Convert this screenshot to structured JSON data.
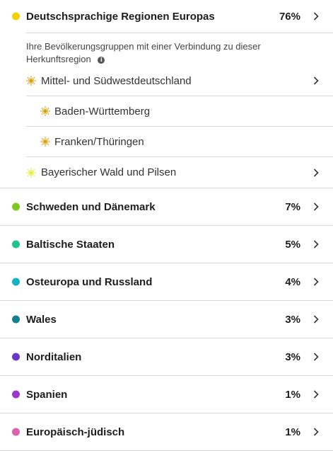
{
  "top_region": {
    "name": "Deutschsprachige Regionen Europas",
    "percent": "76%",
    "color": "#f2d200",
    "description": "Ihre Bevölkerungsgruppen mit einer Verbindung zu dieser Herkunftsregion",
    "sub_regions": [
      {
        "name": "Mittel- und Südwestdeutschland",
        "level": 1,
        "color": "#d6a312",
        "chevron": true
      },
      {
        "name": "Baden-Württemberg",
        "level": 2,
        "color": "#d6a312",
        "chevron": false
      },
      {
        "name": "Franken/Thüringen",
        "level": 2,
        "color": "#d6a312",
        "chevron": false
      },
      {
        "name": "Bayerischer Wald und Pilsen",
        "level": 1,
        "color": "#e2ef3a",
        "chevron": true
      }
    ]
  },
  "regions": [
    {
      "name": "Schweden und Dänemark",
      "percent": "7%",
      "color": "#7dc81f"
    },
    {
      "name": "Baltische Staaten",
      "percent": "5%",
      "color": "#1ec48a"
    },
    {
      "name": "Osteuropa und Russland",
      "percent": "4%",
      "color": "#14b2c6"
    },
    {
      "name": "Wales",
      "percent": "3%",
      "color": "#13808f"
    },
    {
      "name": "Norditalien",
      "percent": "3%",
      "color": "#6a38c8"
    },
    {
      "name": "Spanien",
      "percent": "1%",
      "color": "#9b36c9"
    },
    {
      "name": "Europäisch-jüdisch",
      "percent": "1%",
      "color": "#dc62b0"
    }
  ]
}
